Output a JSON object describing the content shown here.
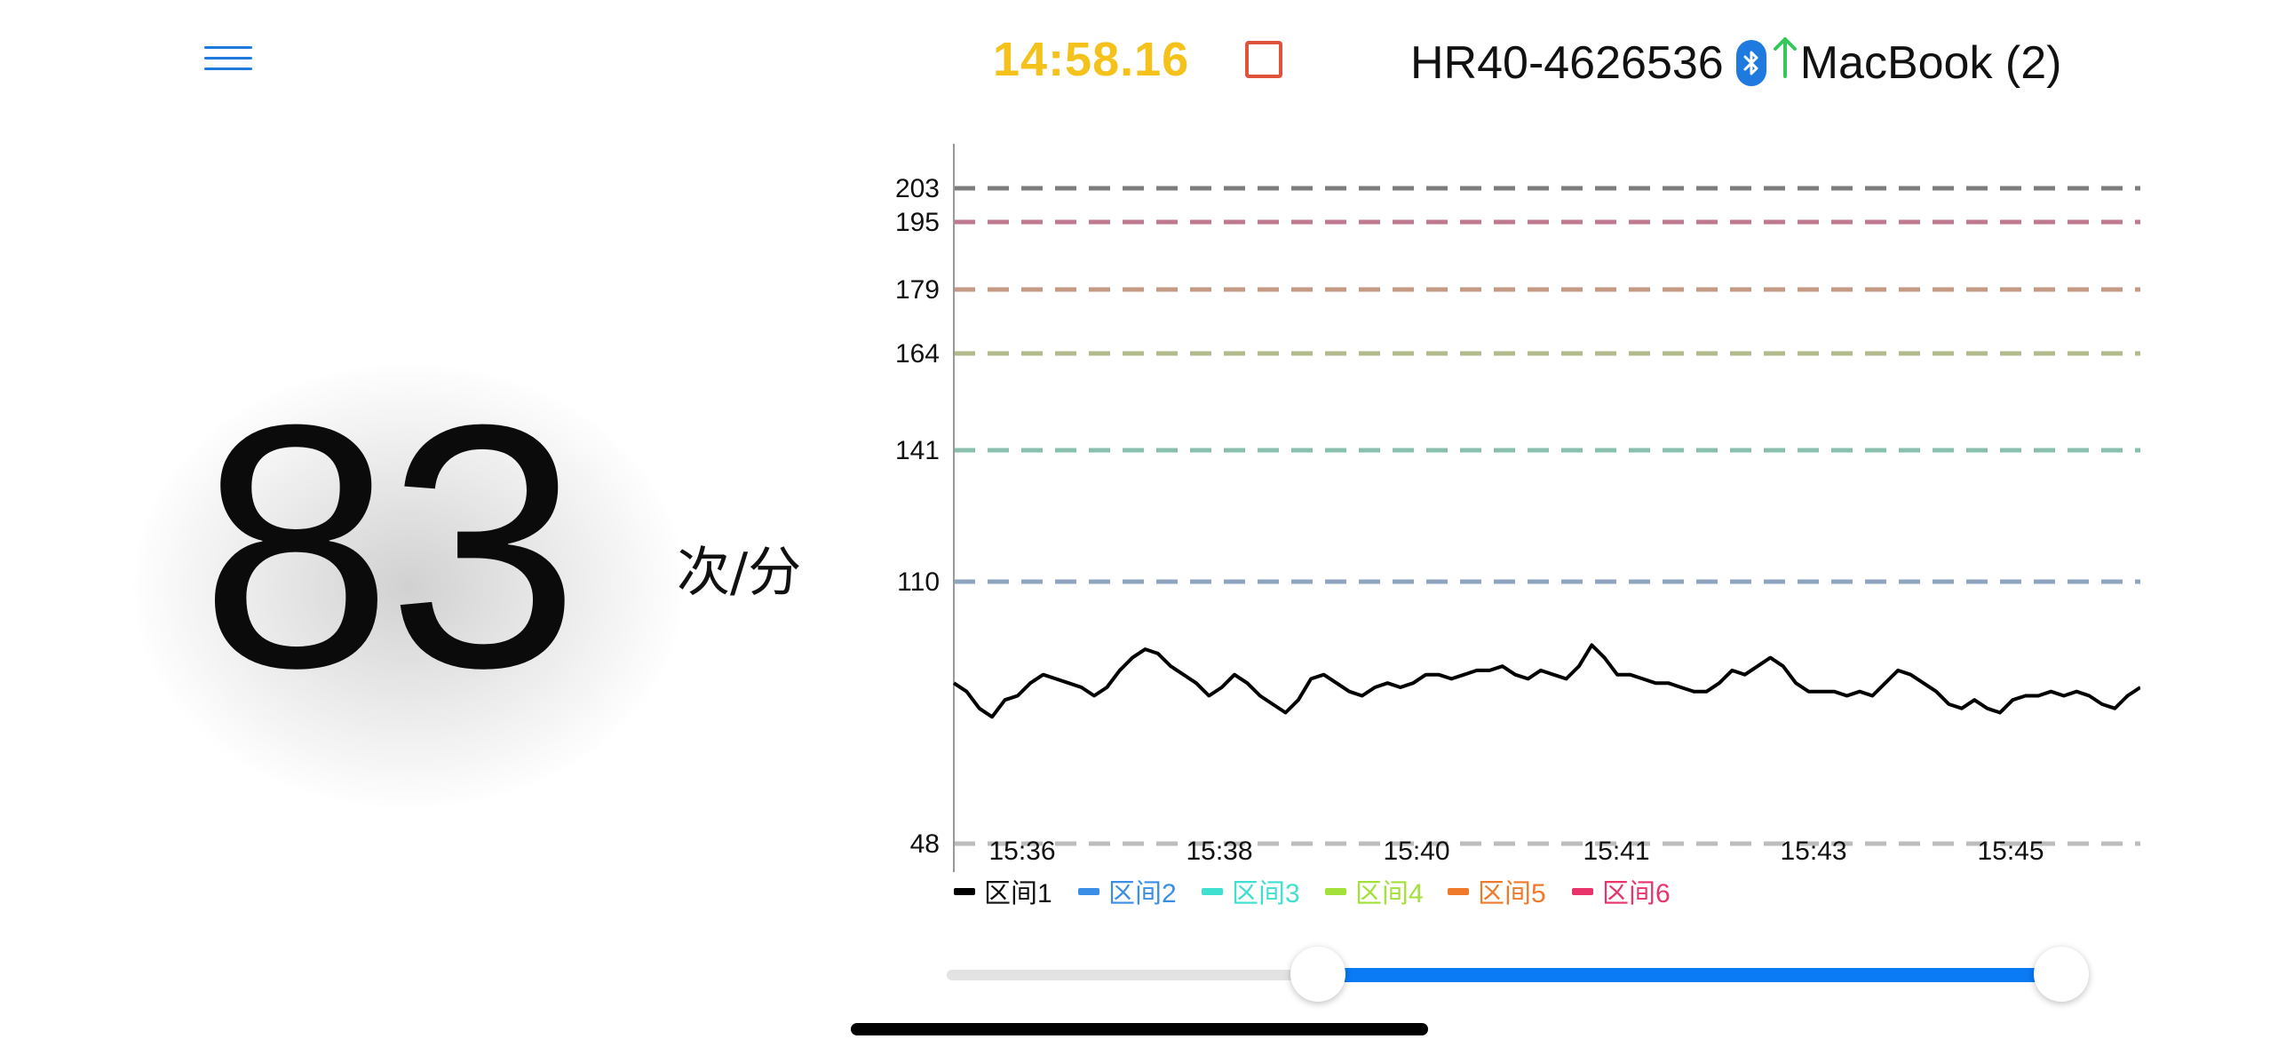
{
  "header": {
    "menu_icon": "hamburger-menu-icon",
    "timer": "14:58.16",
    "stop_icon": "stop-square-icon",
    "device_name": "HR40-4626536",
    "bluetooth_icon": "bluetooth-icon",
    "upload_icon": "arrow-up-icon",
    "target_name": "MacBook (2)",
    "colors": {
      "timer": "#f4c21b",
      "stop": "#e0523a",
      "menu": "#1f7ae0",
      "bluetooth": "#1f7ae0",
      "upload_arrow": "#34c759"
    }
  },
  "heart_rate": {
    "value": "83",
    "unit": "次/分"
  },
  "chart_data": {
    "type": "line",
    "x_ticks": [
      "15:36",
      "15:38",
      "15:40",
      "15:41",
      "15:43",
      "15:45"
    ],
    "y_ticks": [
      203,
      195,
      179,
      164,
      141,
      110,
      48
    ],
    "ylim": [
      48,
      213
    ],
    "grid": false,
    "threshold_lines": [
      {
        "value": 203,
        "color": "#7d7d7d"
      },
      {
        "value": 195,
        "color": "#c07a8f"
      },
      {
        "value": 179,
        "color": "#c49a85"
      },
      {
        "value": 164,
        "color": "#b2bb8c"
      },
      {
        "value": 141,
        "color": "#89bfae"
      },
      {
        "value": 110,
        "color": "#8ea4bf"
      },
      {
        "value": 48,
        "color": "#bdbdbd"
      }
    ],
    "series": [
      {
        "color": "#000000",
        "values": [
          86,
          84,
          80,
          78,
          82,
          83,
          86,
          88,
          87,
          86,
          85,
          83,
          85,
          89,
          92,
          94,
          93,
          90,
          88,
          86,
          83,
          85,
          88,
          86,
          83,
          81,
          79,
          82,
          87,
          88,
          86,
          84,
          83,
          85,
          86,
          85,
          86,
          88,
          88,
          87,
          88,
          89,
          89,
          90,
          88,
          87,
          89,
          88,
          87,
          90,
          95,
          92,
          88,
          88,
          87,
          86,
          86,
          85,
          84,
          84,
          86,
          89,
          88,
          90,
          92,
          90,
          86,
          84,
          84,
          84,
          83,
          84,
          83,
          86,
          89,
          88,
          86,
          84,
          81,
          80,
          82,
          80,
          79,
          82,
          83,
          83,
          84,
          83,
          84,
          83,
          81,
          80,
          83,
          85
        ]
      }
    ],
    "legend": {
      "position": "bottom-left",
      "items": [
        {
          "label": "区间1",
          "color": "#000000",
          "text_color": "#111111"
        },
        {
          "label": "区间2",
          "color": "#3b8ee6",
          "text_color": "#3b8ee6"
        },
        {
          "label": "区间3",
          "color": "#3fe0cf",
          "text_color": "#3fe0cf"
        },
        {
          "label": "区间4",
          "color": "#a4e03a",
          "text_color": "#a4e03a"
        },
        {
          "label": "区间5",
          "color": "#ef7a2b",
          "text_color": "#ef7a2b"
        },
        {
          "label": "区间6",
          "color": "#e8336b",
          "text_color": "#e8336b"
        }
      ]
    }
  },
  "range_slider": {
    "min": 0,
    "max": 1,
    "start": 0.33,
    "end": 1.0,
    "track_color": "#e3e3e3",
    "range_color": "#0a7af5"
  }
}
